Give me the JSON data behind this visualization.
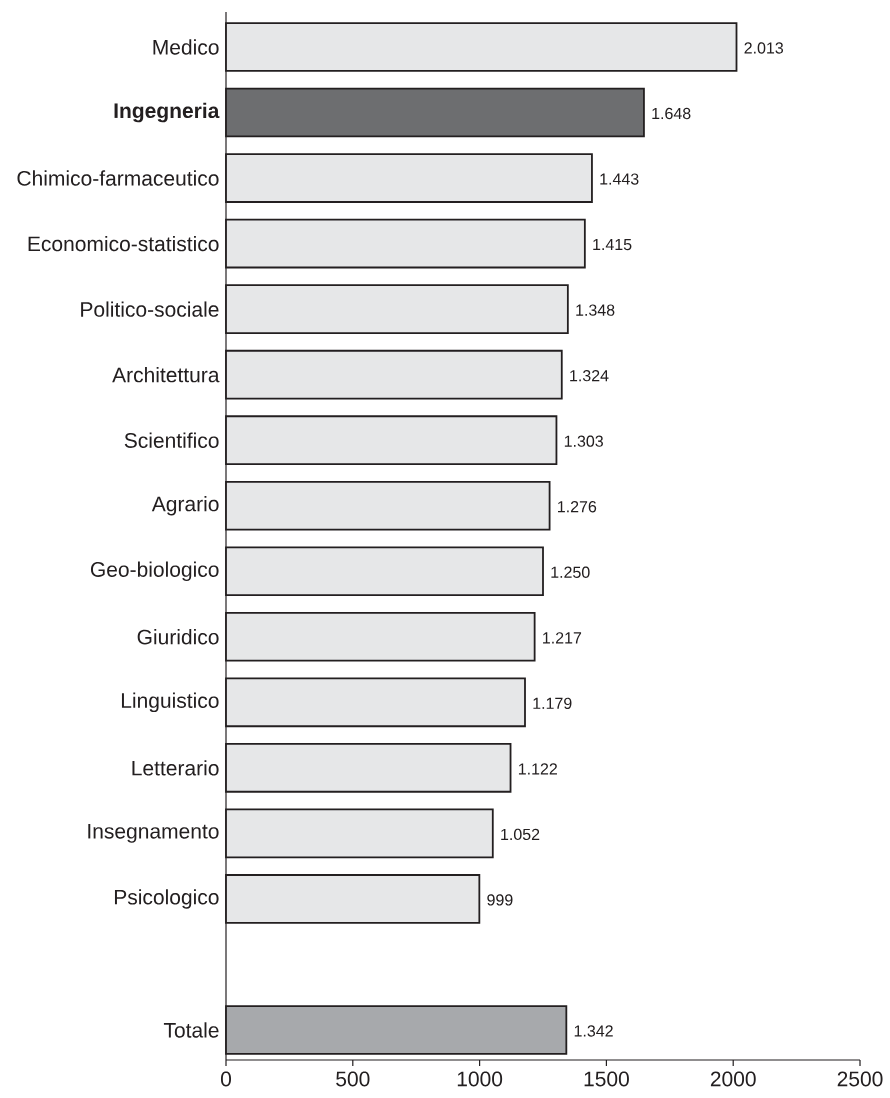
{
  "chart_data": {
    "type": "bar",
    "orientation": "horizontal",
    "categories": [
      "Medico",
      "**Ingegneria**",
      "Chimico-farmaceutico",
      "Economico-statistico",
      "Politico-sociale",
      "Architettura",
      "Scientifico",
      "Agrario",
      "Geo-biologico",
      "Giuridico",
      "Linguistico",
      "Letterario",
      "Insegnamento",
      "Psicologico",
      null,
      "Totale"
    ],
    "values": [
      2013,
      1648,
      1443,
      1415,
      1348,
      1324,
      1303,
      1276,
      1250,
      1217,
      1179,
      1122,
      1052,
      999,
      null,
      1342
    ],
    "value_labels": [
      "2.013",
      "1.648",
      "1.443",
      "1.415",
      "1.348",
      "1.324",
      "1.303",
      "1.276",
      "1.250",
      "1.217",
      "1.179",
      "1.122",
      "1.052",
      "999",
      null,
      "1.342"
    ],
    "colors": [
      "#e6e7e8",
      "#6d6e70",
      "#e6e7e8",
      "#e6e7e8",
      "#e6e7e8",
      "#e6e7e8",
      "#e6e7e8",
      "#e6e7e8",
      "#e6e7e8",
      "#e6e7e8",
      "#e6e7e8",
      "#e6e7e8",
      "#e6e7e8",
      "#e6e7e8",
      null,
      "#a7a9ac"
    ],
    "xlim": [
      0,
      2500
    ],
    "xticks": [
      0,
      500,
      1000,
      1500,
      2000,
      2500
    ]
  }
}
